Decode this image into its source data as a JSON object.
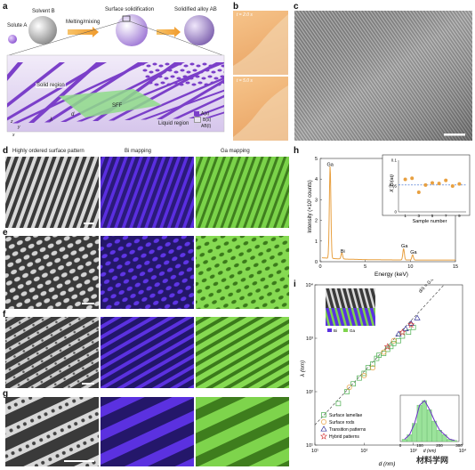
{
  "panel_a": {
    "label": "a",
    "solute": "Solute A",
    "solvent": "Solvent B",
    "melt": "Melting/mixing",
    "surf": "Surface solidification",
    "alloy": "Solidified alloy AB",
    "solid_region": "Solid region",
    "sff": "SFF",
    "liquid_region": "Liquid region",
    "lambda_sym": "λ",
    "d_sym": "d",
    "axes": [
      "z",
      "y",
      "x"
    ],
    "legend": [
      "A(s)",
      "B(s)",
      "AB(l)"
    ],
    "colors": {
      "a": "#7b3fc9",
      "b": "#e9e3f2",
      "ab": "#d6c8ea",
      "sff": "#8fdc8a"
    }
  },
  "panel_b": {
    "label": "b",
    "t1": "t = 2.0 s",
    "t2": "t = 5.0 s"
  },
  "panel_c": {
    "label": "c"
  },
  "panel_d": {
    "label": "d",
    "col1": "Highly ordered surface pattern",
    "col2": "Bi mapping",
    "col3": "Ga mapping"
  },
  "panel_e": {
    "label": "e"
  },
  "panel_f": {
    "label": "f"
  },
  "panel_g": {
    "label": "g"
  },
  "panel_h": {
    "label": "h",
    "ylabel": "Intensity (×10³ counts)",
    "xlabel": "Energy (keV)",
    "peak_ga": "Ga",
    "peak_bi": "Bi",
    "peak_ga2": "Ga",
    "peak_ga3": "Ga",
    "inset_ylabel": "X_Bi(at)",
    "inset_xlabel": "Sample number"
  },
  "panel_i": {
    "label": "i",
    "ylabel": "λ (nm)",
    "xlabel": "d (nm)",
    "slope": "d/λ = 0.42",
    "legend_bi": "Bi",
    "legend_ga": "Ga",
    "series": [
      "Surface lamellae",
      "Surface rods",
      "Transition patterns",
      "Hybrid patterns"
    ],
    "inset_xlabel": "d (nm)"
  },
  "watermark": "材料学网",
  "chart_data": [
    {
      "type": "line",
      "title": "",
      "xlabel": "Energy (keV)",
      "ylabel": "Intensity (×10³ counts)",
      "xlim": [
        0,
        15
      ],
      "ylim": [
        0,
        5
      ],
      "xticks": [
        0,
        5,
        10,
        15
      ],
      "yticks": [
        0,
        1,
        2,
        3,
        4,
        5
      ],
      "peaks": [
        {
          "x": 1.1,
          "y": 4.5,
          "label": "Ga"
        },
        {
          "x": 2.4,
          "y": 0.3,
          "label": "Bi"
        },
        {
          "x": 9.25,
          "y": 0.55,
          "label": "Ga"
        },
        {
          "x": 10.25,
          "y": 0.25,
          "label": "Ga"
        }
      ],
      "color": "#e8a040"
    },
    {
      "type": "scatter",
      "title": "",
      "xlabel": "Sample number",
      "ylabel": "X_Bi(at)",
      "xlim": [
        0,
        10
      ],
      "ylim": [
        0,
        0.1
      ],
      "xticks": [
        1,
        3,
        5,
        7,
        9
      ],
      "yticks": [
        0,
        0.05,
        0.1
      ],
      "x": [
        1,
        2,
        3,
        4,
        5,
        6,
        7,
        8,
        9
      ],
      "values": [
        0.063,
        0.065,
        0.038,
        0.052,
        0.056,
        0.055,
        0.061,
        0.05,
        0.054
      ],
      "reference_line": 0.052,
      "color": "#e8a040"
    },
    {
      "type": "scatter",
      "title": "",
      "xlabel": "d (nm)",
      "ylabel": "λ (nm)",
      "x_scale": "log",
      "y_scale": "log",
      "xlim": [
        10,
        10000
      ],
      "ylim": [
        10,
        10000
      ],
      "xticklabels": [
        "10¹",
        "10²",
        "10³",
        "10⁴"
      ],
      "yticklabels": [
        "10¹",
        "10²",
        "10³",
        "10⁴"
      ],
      "series": [
        {
          "name": "Surface lamellae",
          "marker": "square",
          "color": "#4caf50",
          "x": [
            30,
            45,
            60,
            80,
            100,
            120,
            150,
            180,
            200,
            250,
            300,
            350,
            400,
            500,
            600,
            800,
            1000
          ],
          "y": [
            60,
            100,
            140,
            180,
            220,
            280,
            330,
            420,
            480,
            520,
            620,
            700,
            800,
            900,
            1100,
            1300,
            1600
          ]
        },
        {
          "name": "Surface rods",
          "marker": "circle",
          "color": "#e8a040",
          "x": [
            50,
            100,
            150,
            250,
            400
          ],
          "y": [
            120,
            200,
            280,
            550,
            900
          ]
        },
        {
          "name": "Transition patterns",
          "marker": "triangle",
          "color": "#333399",
          "x": [
            500,
            700,
            900,
            1200
          ],
          "y": [
            1200,
            1500,
            1900,
            2400
          ]
        },
        {
          "name": "Hybrid patterns",
          "marker": "star",
          "color": "#d63a3a",
          "x": [
            300,
            600,
            900
          ],
          "y": [
            700,
            1300,
            1800
          ]
        }
      ],
      "fit_label": "d/λ = 0.42"
    },
    {
      "type": "bar",
      "title": "",
      "xlabel": "d (nm)",
      "xlim": [
        0,
        300
      ],
      "xticks": [
        0,
        100,
        200,
        300
      ],
      "categories": [
        "0",
        "25",
        "50",
        "75",
        "100",
        "125",
        "150",
        "175",
        "200",
        "225",
        "250"
      ],
      "values": [
        1,
        3,
        8,
        16,
        18,
        14,
        9,
        5,
        3,
        1,
        0.5
      ],
      "color": "#9be39b"
    }
  ]
}
